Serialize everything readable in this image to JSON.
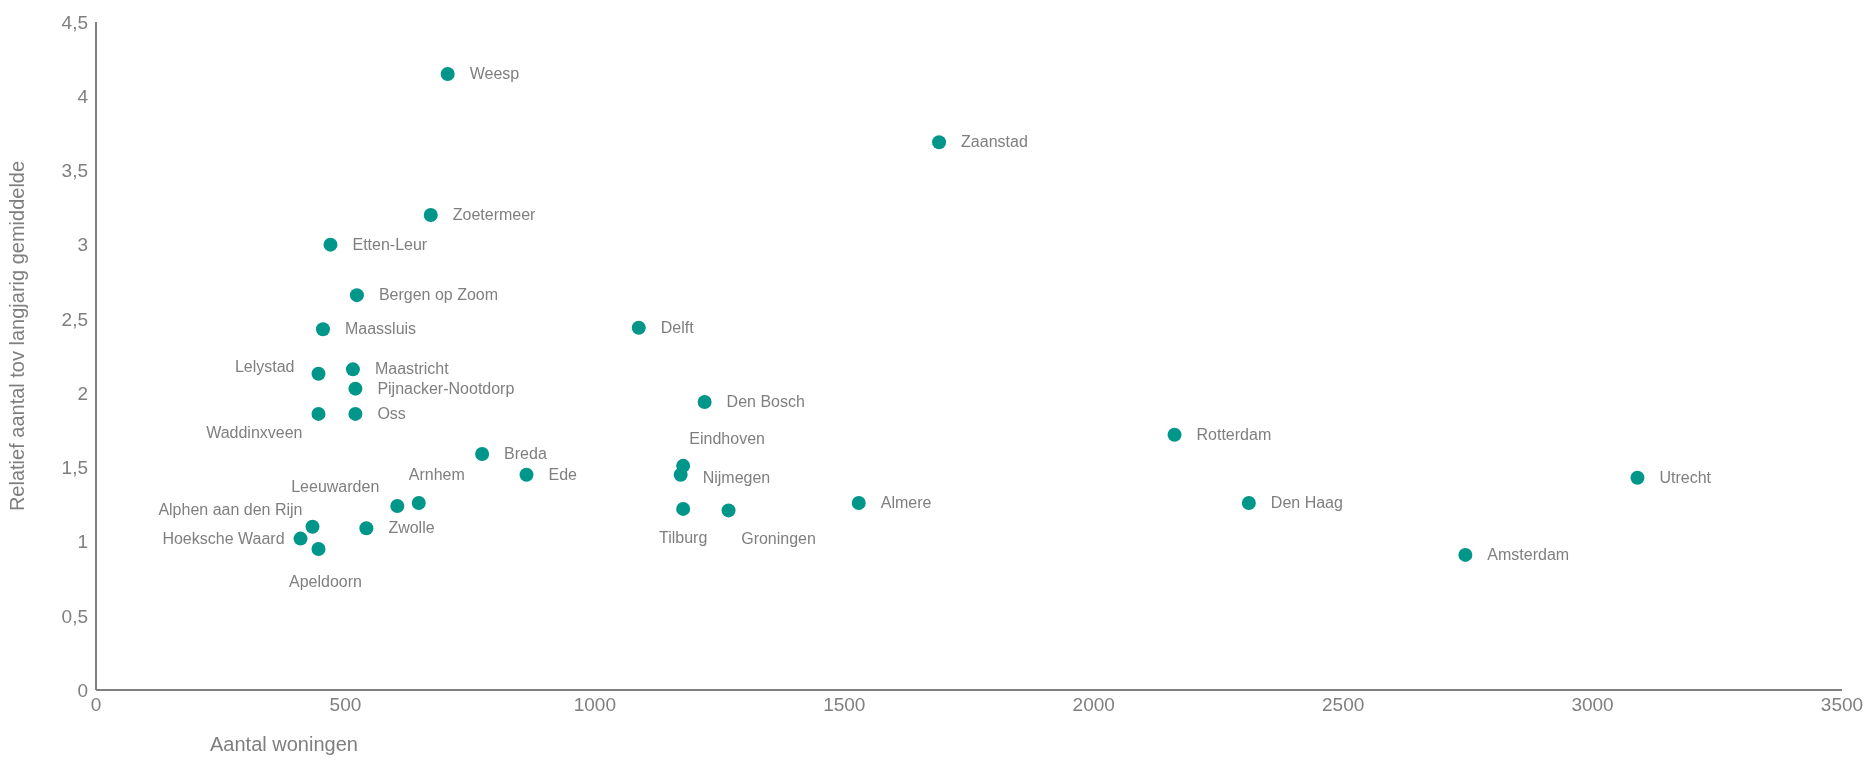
{
  "chart_data": {
    "type": "scatter",
    "xlabel": "Aantal woningen",
    "ylabel": "Relatief aantal tov langjarig gemiddelde",
    "xlim": [
      0,
      3500
    ],
    "xticks": [
      0,
      500,
      1000,
      1500,
      2000,
      2500,
      3000,
      3500
    ],
    "ylim": [
      0,
      4.5
    ],
    "yticks": [
      0,
      {
        "value": 0.5,
        "label": "0,5"
      },
      1,
      {
        "value": 1.5,
        "label": "1,5"
      },
      2,
      {
        "value": 2.5,
        "label": "2,5"
      },
      3,
      {
        "value": 3.5,
        "label": "3,5"
      },
      4,
      {
        "value": 4.5,
        "label": "4,5"
      }
    ],
    "grid": false,
    "marker": "circle",
    "series": [
      {
        "color": "#00968a",
        "x": [
          705,
          1690,
          671,
          470,
          523,
          455,
          1088,
          446,
          515,
          520,
          446,
          520,
          1220,
          2162,
          774,
          1177,
          1172,
          863,
          3090,
          647,
          2311,
          1529,
          604,
          1177,
          1268,
          434,
          542,
          410,
          446,
          2745
        ],
        "values": [
          4.15,
          3.69,
          3.2,
          3.0,
          2.66,
          2.43,
          2.44,
          2.13,
          2.16,
          2.03,
          1.86,
          1.86,
          1.94,
          1.72,
          1.59,
          1.51,
          1.45,
          1.45,
          1.43,
          1.26,
          1.26,
          1.26,
          1.24,
          1.22,
          1.21,
          1.1,
          1.09,
          1.02,
          0.95,
          0.91
        ]
      }
    ],
    "annotations": [
      {
        "text": "Weesp",
        "x": 705,
        "y": 4.15
      },
      {
        "text": "Zaanstad",
        "x": 1690,
        "y": 3.69
      },
      {
        "text": "Zoetermeer",
        "x": 671,
        "y": 3.2
      },
      {
        "text": "Etten-Leur",
        "x": 470,
        "y": 3.0
      },
      {
        "text": "Bergen op Zoom",
        "x": 523,
        "y": 2.66
      },
      {
        "text": "Maassluis",
        "x": 455,
        "y": 2.43
      },
      {
        "text": "Delft",
        "x": 1088,
        "y": 2.44
      },
      {
        "text": "Lelystad",
        "x": 446,
        "y": 2.13
      },
      {
        "text": "Maastricht",
        "x": 515,
        "y": 2.16
      },
      {
        "text": "Pijnacker-Nootdorp",
        "x": 520,
        "y": 2.03
      },
      {
        "text": "Waddinxveen",
        "x": 446,
        "y": 1.86
      },
      {
        "text": "Oss",
        "x": 520,
        "y": 1.86
      },
      {
        "text": "Den Bosch",
        "x": 1220,
        "y": 1.94
      },
      {
        "text": "Rotterdam",
        "x": 2162,
        "y": 1.72
      },
      {
        "text": "Breda",
        "x": 774,
        "y": 1.59
      },
      {
        "text": "Eindhoven",
        "x": 1177,
        "y": 1.51
      },
      {
        "text": "Nijmegen",
        "x": 1172,
        "y": 1.45
      },
      {
        "text": "Ede",
        "x": 863,
        "y": 1.45
      },
      {
        "text": "Utrecht",
        "x": 3090,
        "y": 1.43
      },
      {
        "text": "Arnhem",
        "x": 647,
        "y": 1.26
      },
      {
        "text": "Den Haag",
        "x": 2311,
        "y": 1.26
      },
      {
        "text": "Almere",
        "x": 1529,
        "y": 1.26
      },
      {
        "text": "Leeuwarden",
        "x": 604,
        "y": 1.24
      },
      {
        "text": "Tilburg",
        "x": 1177,
        "y": 1.22
      },
      {
        "text": "Groningen",
        "x": 1268,
        "y": 1.21
      },
      {
        "text": "Alphen aan den Rijn",
        "x": 434,
        "y": 1.1
      },
      {
        "text": "Zwolle",
        "x": 542,
        "y": 1.09
      },
      {
        "text": "Hoeksche Waard",
        "x": 410,
        "y": 1.02
      },
      {
        "text": "Apeldoorn",
        "x": 446,
        "y": 0.95
      },
      {
        "text": "Amsterdam",
        "x": 2745,
        "y": 0.91
      }
    ]
  }
}
